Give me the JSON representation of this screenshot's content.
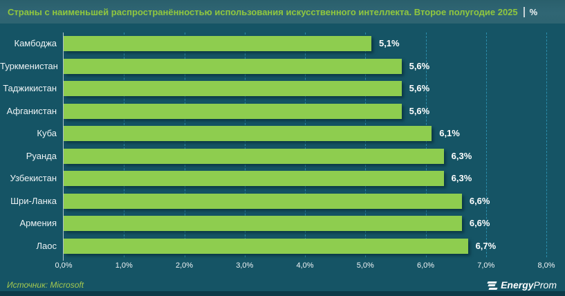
{
  "header": {
    "title": "Страны с наименьшей распространённостью использования искусственного интеллекта. Второе полугодие 2025",
    "unit": "%"
  },
  "chart_data": {
    "type": "bar",
    "orientation": "horizontal",
    "title": "Страны с наименьшей распространённостью использования искусственного интеллекта. Второе полугодие 2025",
    "unit": "%",
    "categories": [
      "Камбоджа",
      "Туркменистан",
      "Таджикистан",
      "Афганистан",
      "Куба",
      "Руанда",
      "Узбекистан",
      "Шри-Ланка",
      "Армения",
      "Лаос"
    ],
    "values": [
      5.1,
      5.6,
      5.6,
      5.6,
      6.1,
      6.3,
      6.3,
      6.6,
      6.6,
      6.7
    ],
    "value_labels": [
      "5,1%",
      "5,6%",
      "5,6%",
      "5,6%",
      "6,1%",
      "6,3%",
      "6,3%",
      "6,6%",
      "6,6%",
      "6,7%"
    ],
    "xlim": [
      0,
      8
    ],
    "xticks": [
      0,
      1,
      2,
      3,
      4,
      5,
      6,
      7,
      8
    ],
    "xtick_labels": [
      "0,0%",
      "1,0%",
      "2,0%",
      "3,0%",
      "4,0%",
      "5,0%",
      "6,0%",
      "7,0%",
      "8,0%"
    ],
    "xlabel": "",
    "ylabel": "",
    "grid": "vertical-dashed",
    "legend": "none"
  },
  "footer": {
    "source": "Источник: Microsoft",
    "logo_bold": "Energy",
    "logo_regular": "Prom"
  },
  "colors": {
    "header_bg": "#2f6471",
    "chart_bg": "#155465",
    "footer_bg": "#356877",
    "bottom_strip": "#0d3a48",
    "bar": "#8ecd4f",
    "grid": "#2e93b2",
    "title": "#90c73e",
    "source_text": "#a5c94f",
    "axis_line": "#b6c7ce",
    "text": "#ffffff"
  }
}
